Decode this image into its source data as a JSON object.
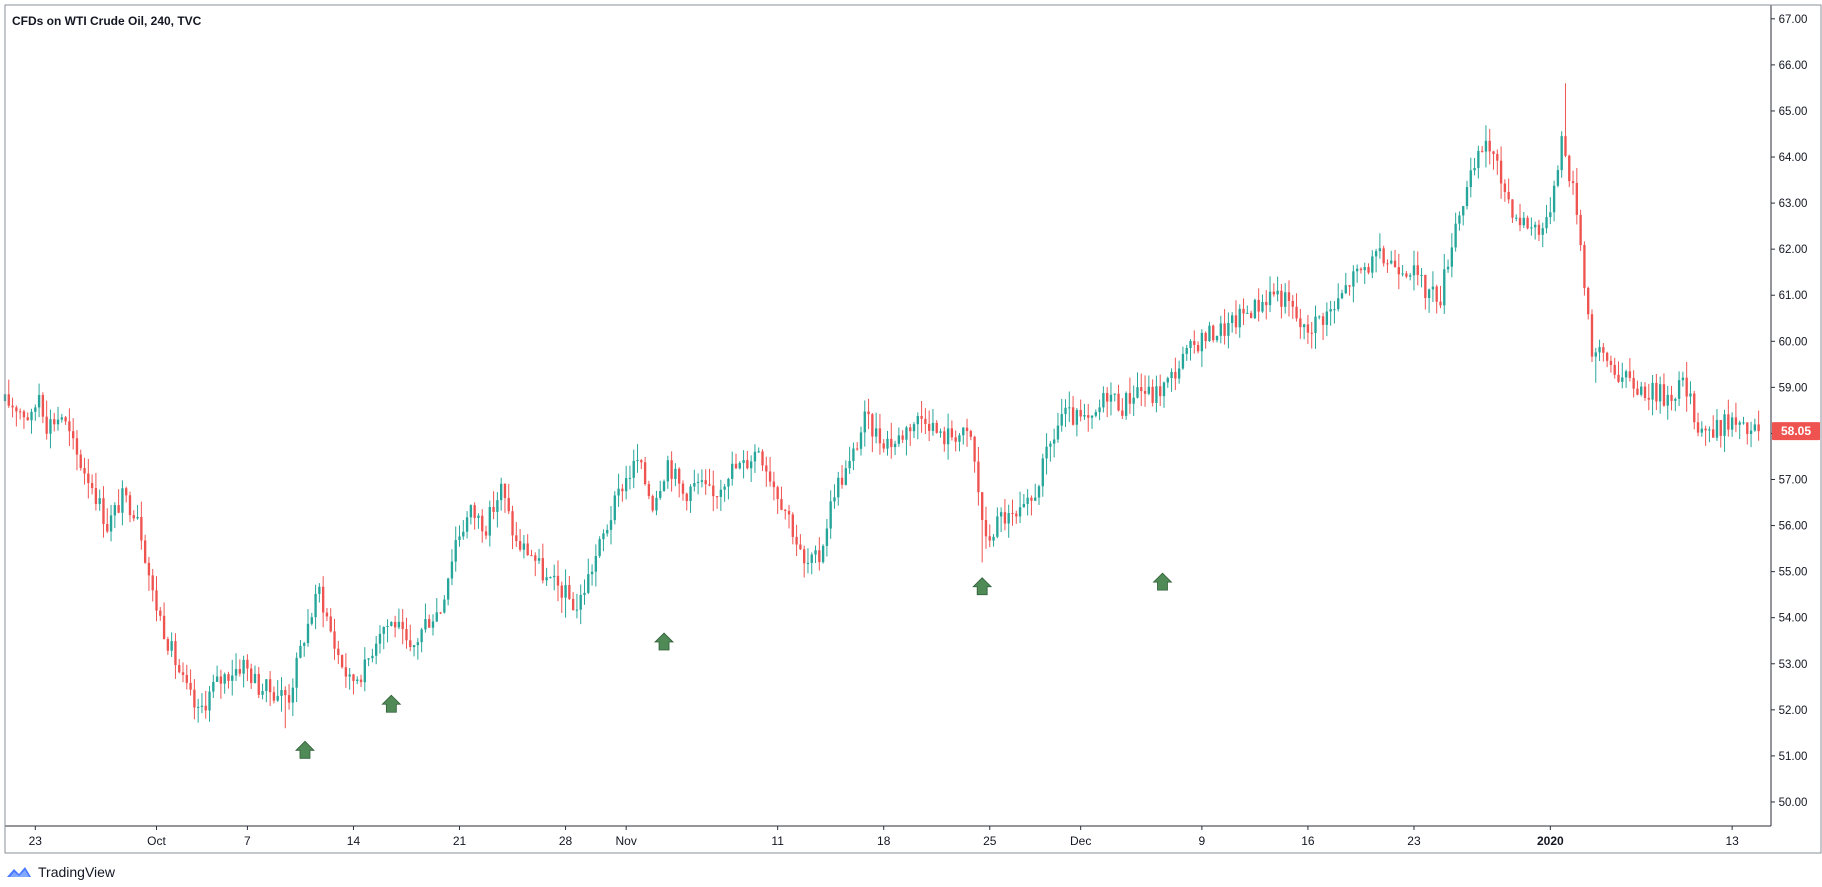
{
  "header": {
    "title": "CFDs on WTI Crude Oil, 240, TVC"
  },
  "footer": {
    "brand": "TradingView"
  },
  "colors": {
    "up": "#26a69a",
    "down": "#ef5350",
    "marker": "#4f8a57",
    "last_price_bg": "#ef5350",
    "axis_text": "#131722",
    "border": "#2a2e39"
  },
  "chart_data": {
    "type": "candlestick",
    "title": "CFDs on WTI Crude Oil, 240, TVC",
    "timeframe": "240",
    "source": "TVC",
    "ylim": [
      49.5,
      67.3
    ],
    "y_ticks": [
      "50.00",
      "51.00",
      "52.00",
      "53.00",
      "54.00",
      "55.00",
      "56.00",
      "57.00",
      "58.00",
      "59.00",
      "60.00",
      "61.00",
      "62.00",
      "63.00",
      "64.00",
      "65.00",
      "66.00",
      "67.00"
    ],
    "x_ticks": [
      {
        "label": "23",
        "day": 0
      },
      {
        "label": "Oct",
        "day": 8
      },
      {
        "label": "7",
        "day": 14
      },
      {
        "label": "14",
        "day": 21
      },
      {
        "label": "21",
        "day": 28
      },
      {
        "label": "28",
        "day": 35
      },
      {
        "label": "Nov",
        "day": 39
      },
      {
        "label": "11",
        "day": 49
      },
      {
        "label": "18",
        "day": 56
      },
      {
        "label": "25",
        "day": 63
      },
      {
        "label": "Dec",
        "day": 69
      },
      {
        "label": "9",
        "day": 77
      },
      {
        "label": "16",
        "day": 84
      },
      {
        "label": "23",
        "day": 91
      },
      {
        "label": "2020",
        "day": 100,
        "bold": true
      },
      {
        "label": "13",
        "day": 112
      }
    ],
    "x_range_days": [
      -2,
      114.5
    ],
    "close_path": [
      [
        -2,
        58.7
      ],
      [
        -1,
        58.6
      ],
      [
        0,
        58.3
      ],
      [
        0.5,
        58.9
      ],
      [
        1,
        58.2
      ],
      [
        2,
        58.4
      ],
      [
        3,
        57.5
      ],
      [
        4,
        56.9
      ],
      [
        5,
        56.0
      ],
      [
        6,
        56.6
      ],
      [
        7,
        56.3
      ],
      [
        8,
        54.5
      ],
      [
        9,
        53.5
      ],
      [
        10,
        52.6
      ],
      [
        11,
        51.9
      ],
      [
        12,
        52.5
      ],
      [
        13,
        52.8
      ],
      [
        14,
        53.0
      ],
      [
        15,
        52.5
      ],
      [
        16,
        52.4
      ],
      [
        17,
        52.3
      ],
      [
        18,
        53.6
      ],
      [
        19,
        54.6
      ],
      [
        20,
        53.4
      ],
      [
        21,
        52.6
      ],
      [
        22,
        52.9
      ],
      [
        23,
        53.8
      ],
      [
        24,
        53.9
      ],
      [
        25,
        53.2
      ],
      [
        26,
        53.9
      ],
      [
        27,
        54.2
      ],
      [
        28,
        55.7
      ],
      [
        29,
        56.3
      ],
      [
        30,
        56.0
      ],
      [
        31,
        56.8
      ],
      [
        32,
        55.6
      ],
      [
        33,
        55.4
      ],
      [
        34,
        54.8
      ],
      [
        35,
        54.6
      ],
      [
        36,
        54.2
      ],
      [
        37,
        55.1
      ],
      [
        38,
        56.0
      ],
      [
        39,
        56.9
      ],
      [
        40,
        57.4
      ],
      [
        41,
        56.5
      ],
      [
        42,
        57.4
      ],
      [
        43,
        56.7
      ],
      [
        44,
        56.9
      ],
      [
        45,
        56.6
      ],
      [
        46,
        57.2
      ],
      [
        47,
        57.3
      ],
      [
        48,
        57.7
      ],
      [
        49,
        56.9
      ],
      [
        50,
        56.2
      ],
      [
        51,
        55.1
      ],
      [
        52,
        55.3
      ],
      [
        53,
        56.8
      ],
      [
        54,
        57.3
      ],
      [
        55,
        58.3
      ],
      [
        56,
        57.9
      ],
      [
        57,
        57.8
      ],
      [
        58,
        58.2
      ],
      [
        59,
        58.4
      ],
      [
        60,
        57.9
      ],
      [
        61,
        58.0
      ],
      [
        62,
        57.9
      ],
      [
        63,
        55.6
      ],
      [
        64,
        56.2
      ],
      [
        65,
        56.1
      ],
      [
        66,
        56.5
      ],
      [
        67,
        57.5
      ],
      [
        68,
        58.4
      ],
      [
        69,
        58.3
      ],
      [
        70,
        58.2
      ],
      [
        71,
        58.9
      ],
      [
        72,
        58.6
      ],
      [
        73,
        59.0
      ],
      [
        74,
        58.8
      ],
      [
        75,
        59.1
      ],
      [
        76,
        59.6
      ],
      [
        77,
        60.0
      ],
      [
        78,
        60.2
      ],
      [
        79,
        60.3
      ],
      [
        80,
        60.6
      ],
      [
        81,
        60.8
      ],
      [
        82,
        61.1
      ],
      [
        83,
        60.8
      ],
      [
        84,
        60.2
      ],
      [
        85,
        60.5
      ],
      [
        86,
        60.7
      ],
      [
        87,
        61.3
      ],
      [
        88,
        61.6
      ],
      [
        89,
        61.8
      ],
      [
        90,
        61.7
      ],
      [
        91,
        61.6
      ],
      [
        92,
        61.1
      ],
      [
        93,
        61.0
      ],
      [
        94,
        62.6
      ],
      [
        95,
        63.5
      ],
      [
        96,
        64.4
      ],
      [
        97,
        63.5
      ],
      [
        98,
        62.7
      ],
      [
        99,
        62.5
      ],
      [
        100,
        62.5
      ],
      [
        101,
        64.4
      ],
      [
        102,
        62.9
      ],
      [
        103,
        59.8
      ],
      [
        104,
        59.6
      ],
      [
        105,
        59.2
      ],
      [
        106,
        59.0
      ],
      [
        107,
        58.9
      ],
      [
        108,
        58.8
      ],
      [
        109,
        59.1
      ],
      [
        110,
        58.2
      ],
      [
        111,
        58.0
      ],
      [
        112,
        58.3
      ],
      [
        113,
        58.05
      ]
    ],
    "events": [
      {
        "day": 35,
        "low": 54.0
      },
      {
        "day": 15,
        "low": 52.4
      },
      {
        "day": 103,
        "low": 59.1
      },
      {
        "day": 101,
        "high": 65.6
      },
      {
        "day": 16.5,
        "low": 51.6
      },
      {
        "day": 62.5,
        "low": 55.2
      }
    ],
    "markers": [
      {
        "day": 17.8,
        "price": 51.1
      },
      {
        "day": 23.5,
        "price": 52.1
      },
      {
        "day": 41.5,
        "price": 53.45
      },
      {
        "day": 62.5,
        "price": 54.65
      },
      {
        "day": 74.4,
        "price": 54.75
      }
    ],
    "last_price": {
      "value": 58.05,
      "label": "58.05"
    },
    "grid": false,
    "legend": "none"
  }
}
